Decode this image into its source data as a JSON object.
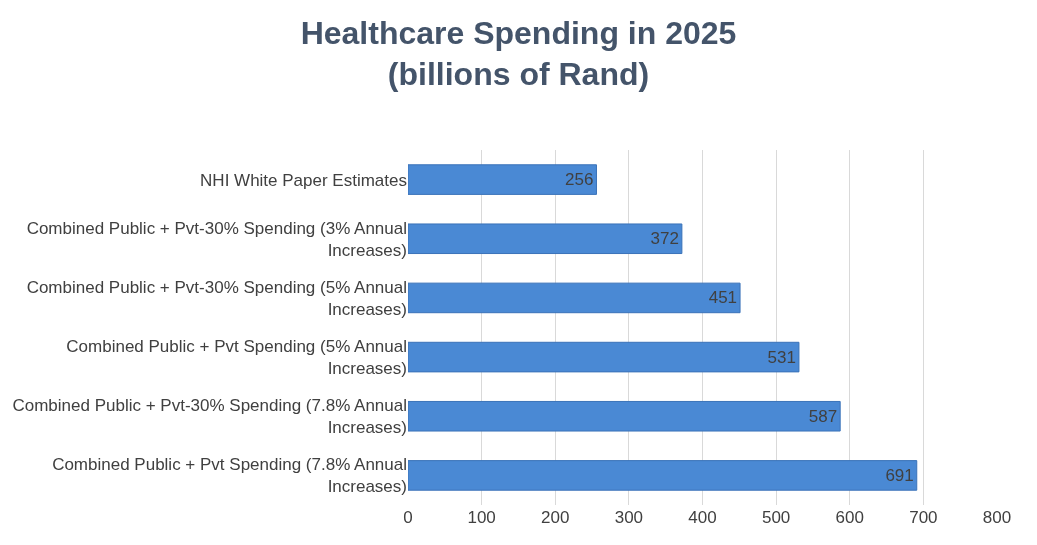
{
  "chart_data": {
    "type": "bar",
    "orientation": "horizontal",
    "title": "Healthcare Spending in 2025\n(billions of Rand)",
    "categories": [
      "NHI White Paper Estimates",
      "Combined Public + Pvt-30% Spending (3% Annual\nIncreases)",
      "Combined Public + Pvt-30% Spending (5% Annual\nIncreases)",
      "Combined Public + Pvt Spending (5% Annual\nIncreases)",
      "Combined Public + Pvt-30% Spending (7.8% Annual\nIncreases)",
      "Combined Public + Pvt Spending (7.8% Annual\nIncreases)"
    ],
    "values": [
      256,
      372,
      451,
      531,
      587,
      691
    ],
    "color": "#4a89d4",
    "xlim": [
      0,
      800
    ],
    "xticks": [
      0,
      100,
      200,
      300,
      400,
      500,
      600,
      700,
      800
    ],
    "grid": "x",
    "data_labels": true
  }
}
